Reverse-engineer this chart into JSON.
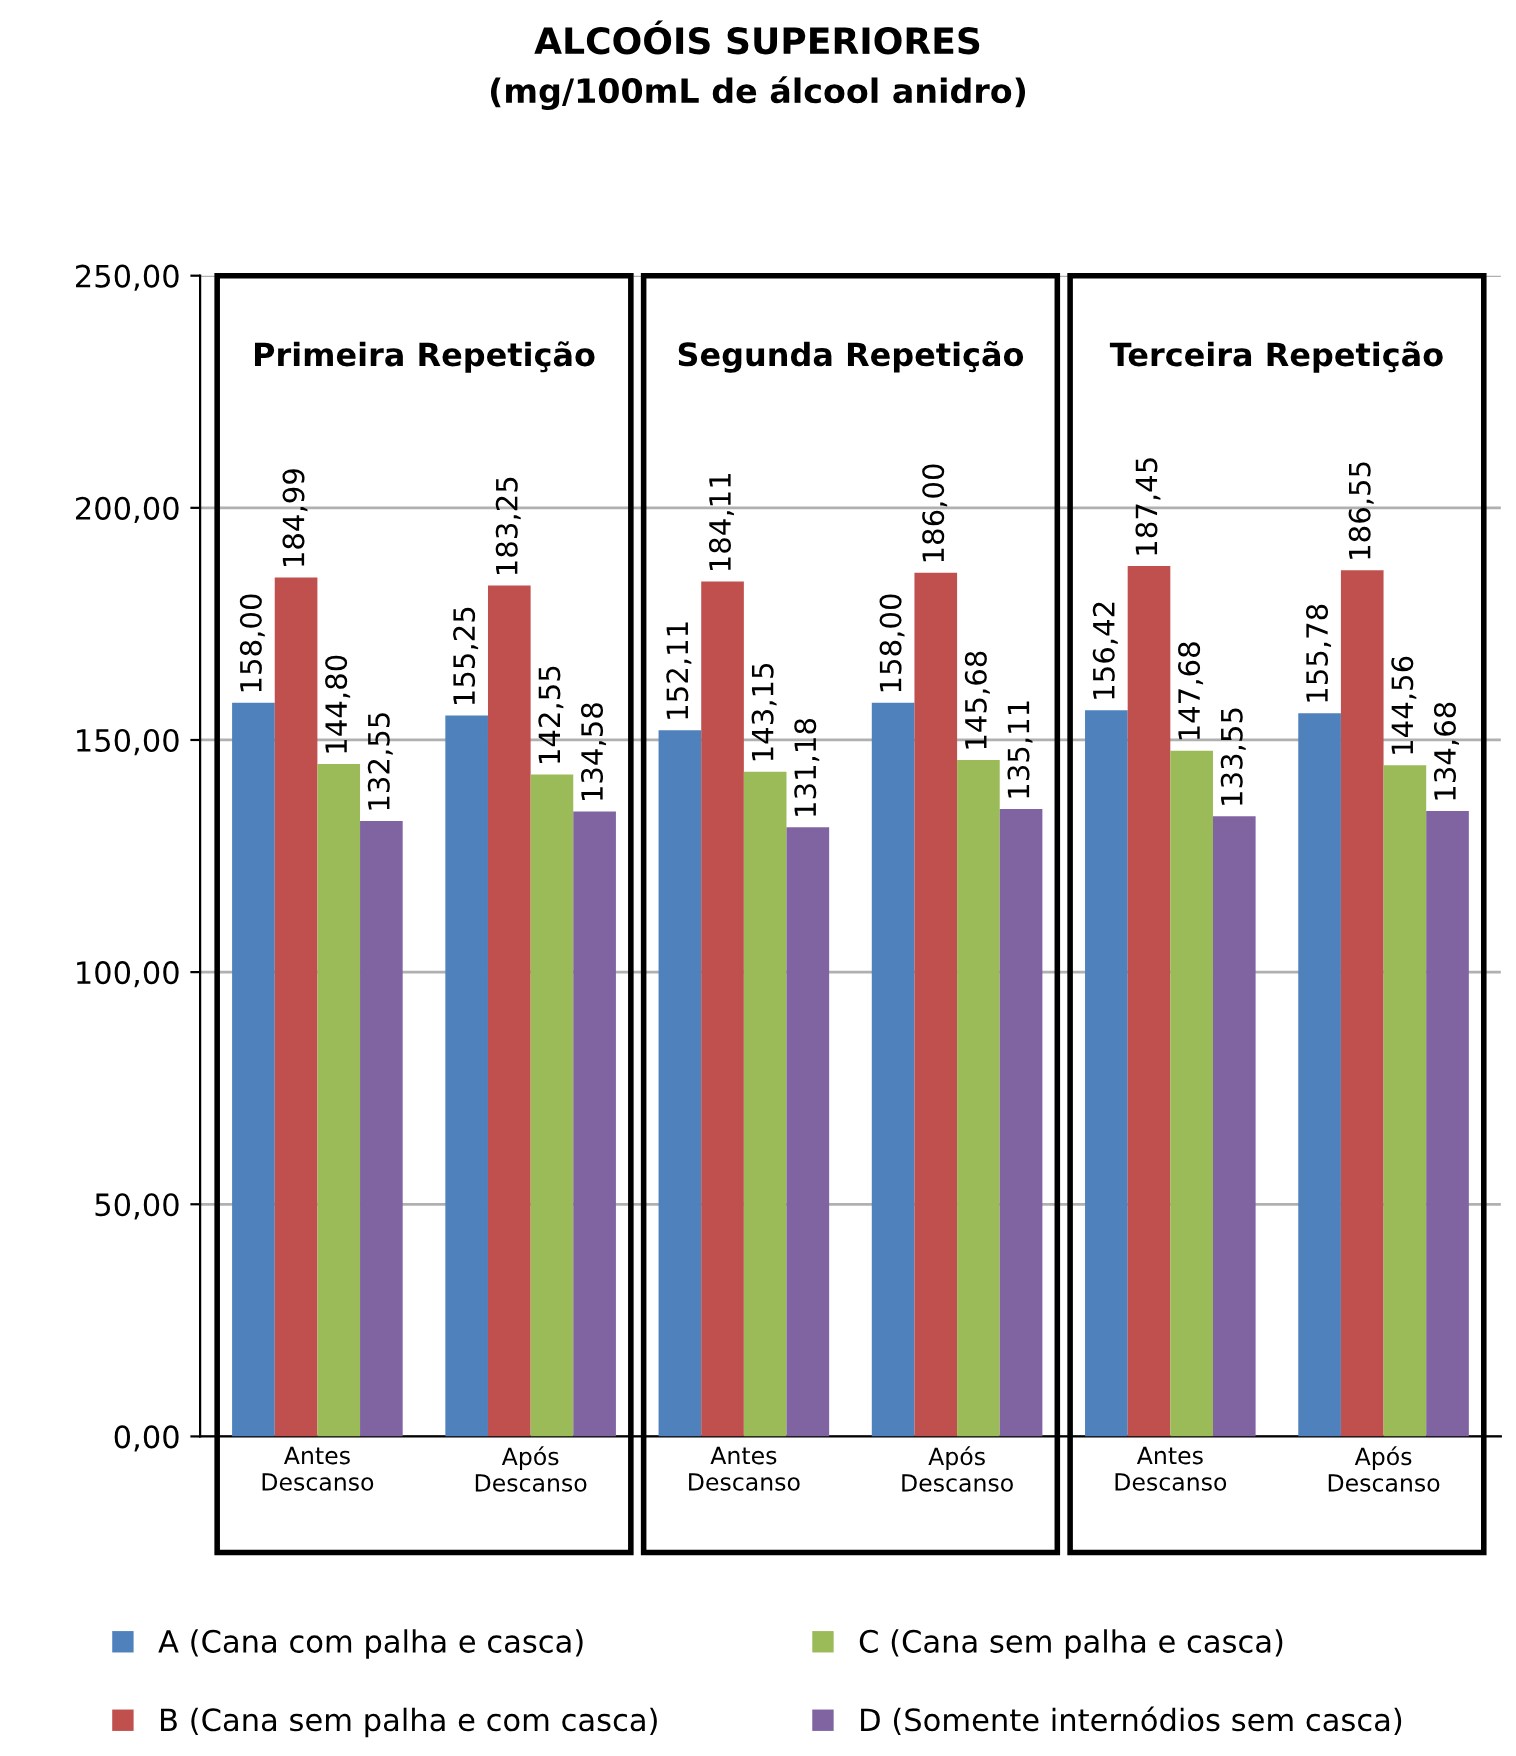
{
  "chart_data": {
    "type": "bar",
    "title": "ALCOÓIS SUPERIORES",
    "subtitle": "(mg/100mL de álcool anidro)",
    "categories": [
      "Antes\nDescanso",
      "Após\nDescanso",
      "Antes\nDescanso",
      "Após\nDescanso",
      "Antes\nDescanso",
      "Após\nDescanso"
    ],
    "series": [
      {
        "name": "A (Cana com palha e casca)",
        "color": "#4f81bd",
        "values": [
          158.0,
          155.25,
          152.11,
          158.0,
          156.42,
          155.78
        ],
        "value_labels": [
          "158,00",
          "155,25",
          "152,11",
          "158,00",
          "156,42",
          "155,78"
        ]
      },
      {
        "name": "B (Cana sem palha e com casca)",
        "color": "#c0504d",
        "values": [
          184.99,
          183.25,
          184.11,
          186.0,
          187.45,
          186.55
        ],
        "value_labels": [
          "184,99",
          "183,25",
          "184,11",
          "186,00",
          "187,45",
          "186,55"
        ]
      },
      {
        "name": "C (Cana sem palha e casca)",
        "color": "#9bbb59",
        "values": [
          144.8,
          142.55,
          143.15,
          145.68,
          147.68,
          144.56
        ],
        "value_labels": [
          "144,80",
          "142,55",
          "143,15",
          "145,68",
          "147,68",
          "144,56"
        ]
      },
      {
        "name": "D (Somente internódios sem casca)",
        "color": "#8064a2",
        "values": [
          132.55,
          134.58,
          131.18,
          135.11,
          133.55,
          134.68
        ],
        "value_labels": [
          "132,55",
          "134,58",
          "131,18",
          "135,11",
          "133,55",
          "134,68"
        ]
      }
    ],
    "annotations": [
      "Primeira Repetição",
      "Segunda Repetição",
      "Terceira Repetição"
    ],
    "ylim": [
      0,
      250
    ],
    "yticks": [
      {
        "value": 0,
        "label": "0,00"
      },
      {
        "value": 50,
        "label": "50,00"
      },
      {
        "value": 100,
        "label": "100,00"
      },
      {
        "value": 150,
        "label": "150,00"
      },
      {
        "value": 200,
        "label": "200,00"
      },
      {
        "value": 250,
        "label": "250,00"
      }
    ],
    "grid": "y",
    "legend": "bottom"
  }
}
